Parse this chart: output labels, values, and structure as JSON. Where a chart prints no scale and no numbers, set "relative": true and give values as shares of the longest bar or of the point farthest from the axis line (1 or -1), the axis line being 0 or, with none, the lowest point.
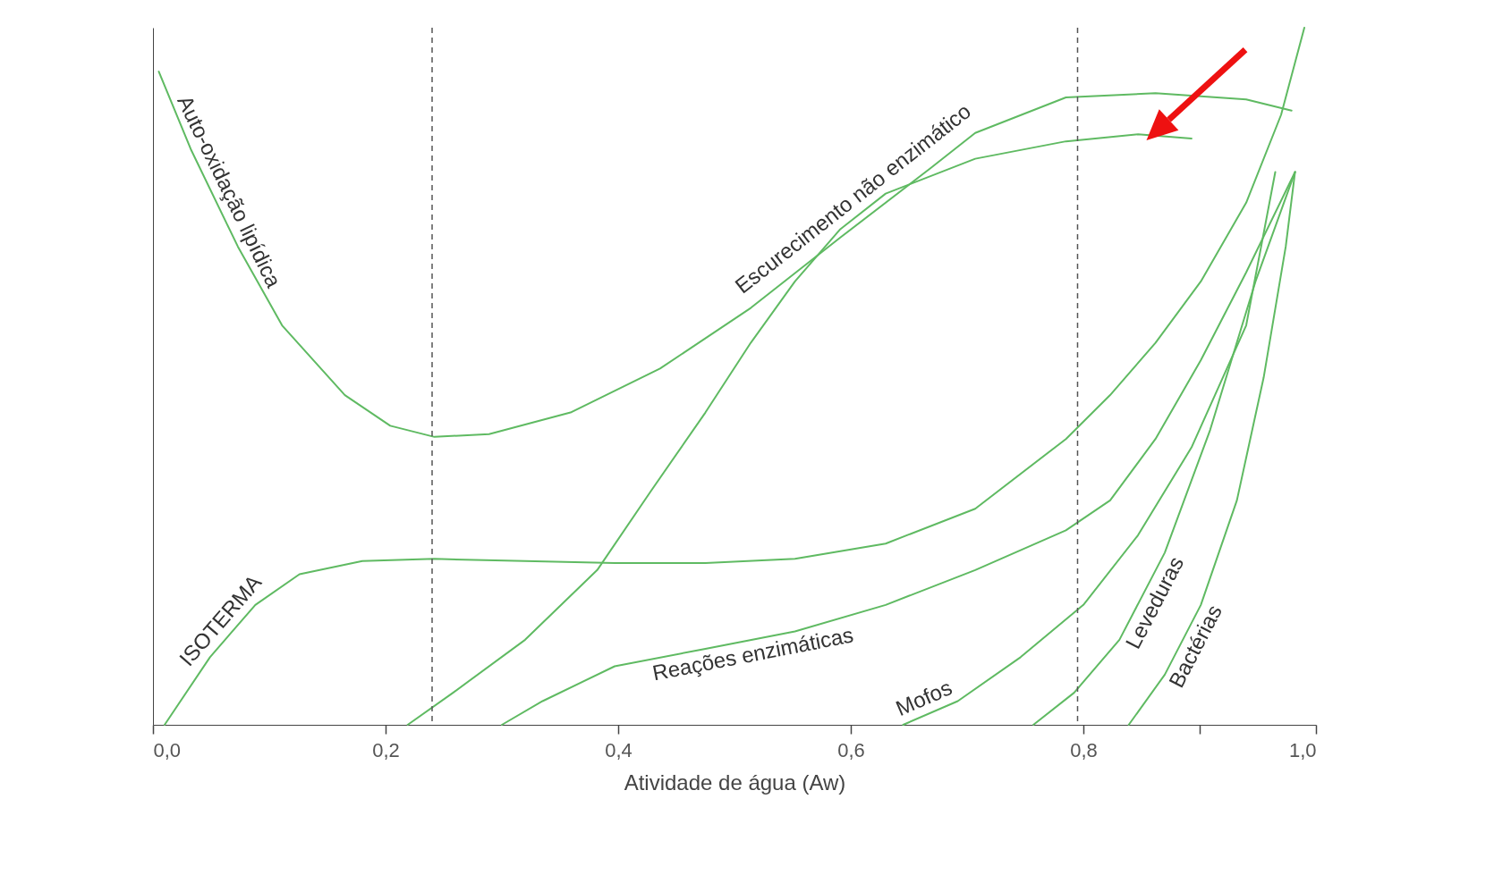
{
  "chart_data": {
    "type": "line",
    "relative": true,
    "xlabel": "Atividade de água (Aw)",
    "xlim": [
      0,
      1
    ],
    "xticks": [
      {
        "value": 0,
        "label": "0,0"
      },
      {
        "value": 0.2,
        "label": "0,2"
      },
      {
        "value": 0.4,
        "label": "0,4"
      },
      {
        "value": 0.6,
        "label": "0,6"
      },
      {
        "value": 0.8,
        "label": "0,8"
      },
      {
        "value": 0.9,
        "label": null
      },
      {
        "value": 1,
        "label": "1,0"
      }
    ],
    "grid": false,
    "legend": false,
    "marker": "none",
    "line_style": "solid",
    "ref_lines": [
      {
        "axis": "x",
        "value": 0.24,
        "label": null,
        "color": "#555555",
        "line_style": "dashed"
      },
      {
        "axis": "x",
        "value": 0.795,
        "label": null,
        "color": "#555555",
        "line_style": "dashed"
      }
    ],
    "series": [
      {
        "name": "ISOTERMA",
        "color": "#5fba62",
        "x": [
          0.01,
          0.049,
          0.088,
          0.126,
          0.18,
          0.242,
          0.32,
          0.397,
          0.475,
          0.552,
          0.63,
          0.707,
          0.785,
          0.823,
          0.862,
          0.901,
          0.94,
          0.97,
          0.99
        ],
        "values": [
          0,
          0.097,
          0.172,
          0.216,
          0.235,
          0.238,
          0.235,
          0.232,
          0.232,
          0.238,
          0.26,
          0.31,
          0.41,
          0.473,
          0.548,
          0.636,
          0.749,
          0.875,
          1
        ]
      },
      {
        "name": "Auto-oxidação lipídica",
        "color": "#5fba62",
        "x": [
          0.005,
          0.033,
          0.073,
          0.111,
          0.165,
          0.204,
          0.242,
          0.289,
          0.359,
          0.436,
          0.514,
          0.591,
          0.669,
          0.707,
          0.785,
          0.862,
          0.94,
          0.979
        ],
        "values": [
          0.937,
          0.824,
          0.686,
          0.573,
          0.473,
          0.429,
          0.413,
          0.417,
          0.448,
          0.511,
          0.598,
          0.699,
          0.799,
          0.849,
          0.9,
          0.906,
          0.897,
          0.881
        ]
      },
      {
        "name": "Escurecimento não enzimático",
        "color": "#5fba62",
        "x": [
          0.219,
          0.258,
          0.32,
          0.382,
          0.428,
          0.475,
          0.514,
          0.552,
          0.591,
          0.63,
          0.707,
          0.785,
          0.847,
          0.893
        ],
        "values": [
          0,
          0.046,
          0.122,
          0.222,
          0.335,
          0.448,
          0.548,
          0.636,
          0.711,
          0.762,
          0.812,
          0.837,
          0.847,
          0.841
        ]
      },
      {
        "name": "Reações enzimáticas",
        "color": "#5fba62",
        "x": [
          0.3,
          0.335,
          0.397,
          0.475,
          0.552,
          0.63,
          0.707,
          0.785,
          0.823,
          0.862,
          0.901,
          0.94,
          0.982
        ],
        "values": [
          0,
          0.034,
          0.084,
          0.109,
          0.134,
          0.172,
          0.222,
          0.279,
          0.322,
          0.41,
          0.523,
          0.649,
          0.793
        ]
      },
      {
        "name": "Mofos",
        "color": "#5fba62",
        "x": [
          0.645,
          0.692,
          0.746,
          0.8,
          0.847,
          0.893,
          0.94,
          0.965
        ],
        "values": [
          0,
          0.034,
          0.097,
          0.172,
          0.272,
          0.398,
          0.573,
          0.793
        ]
      },
      {
        "name": "Leveduras",
        "color": "#5fba62",
        "x": [
          0.757,
          0.792,
          0.831,
          0.87,
          0.909,
          0.948,
          0.982
        ],
        "values": [
          0,
          0.046,
          0.122,
          0.247,
          0.423,
          0.636,
          0.793
        ]
      },
      {
        "name": "Bactérias",
        "color": "#5fba62",
        "x": [
          0.839,
          0.87,
          0.901,
          0.932,
          0.955,
          0.974,
          0.982
        ],
        "values": [
          0,
          0.072,
          0.172,
          0.322,
          0.498,
          0.686,
          0.793
        ]
      }
    ]
  }
}
